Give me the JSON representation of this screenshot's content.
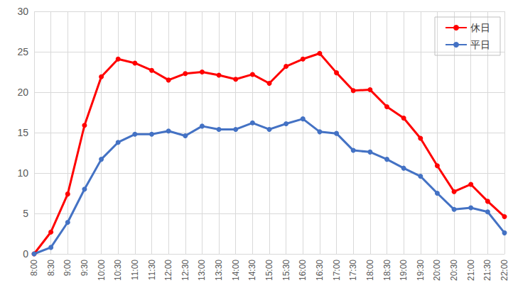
{
  "chart_data": {
    "type": "line",
    "categories": [
      "8:00",
      "8:30",
      "9:00",
      "9:30",
      "10:00",
      "10:30",
      "11:00",
      "11:30",
      "12:00",
      "12:30",
      "13:00",
      "13:30",
      "14:00",
      "14:30",
      "15:00",
      "15:30",
      "16:00",
      "16:30",
      "17:00",
      "17:30",
      "18:00",
      "18:30",
      "19:00",
      "19:30",
      "20:00",
      "20:30",
      "21:00",
      "21:30",
      "22:00"
    ],
    "series": [
      {
        "name": "休日",
        "color": "#ff0000",
        "marker": "circle",
        "values": [
          0,
          2.7,
          7.4,
          15.9,
          21.9,
          24.1,
          23.6,
          22.7,
          21.5,
          22.3,
          22.5,
          22.1,
          21.6,
          22.2,
          21.1,
          23.2,
          24.1,
          24.8,
          22.4,
          20.2,
          20.3,
          18.2,
          16.8,
          14.3,
          10.9,
          7.7,
          8.6,
          6.5,
          4.6
        ]
      },
      {
        "name": "平日",
        "color": "#4472c4",
        "marker": "circle",
        "values": [
          0,
          0.8,
          3.9,
          8.0,
          11.7,
          13.8,
          14.8,
          14.8,
          15.2,
          14.6,
          15.8,
          15.4,
          15.4,
          16.2,
          15.4,
          16.1,
          16.7,
          15.1,
          14.9,
          12.8,
          12.6,
          11.7,
          10.6,
          9.6,
          7.5,
          5.5,
          5.7,
          5.2,
          2.6
        ]
      }
    ],
    "ylim": [
      0,
      30
    ],
    "yticks": [
      0,
      5,
      10,
      15,
      20,
      25,
      30
    ],
    "grid": true,
    "legend": "top-right"
  }
}
